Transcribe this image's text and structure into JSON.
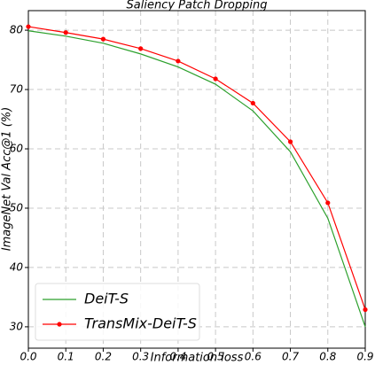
{
  "chart_data": {
    "type": "line",
    "title": "Saliency Patch Dropping",
    "x_label": "Information loss",
    "y_label": "ImageNet Val Acc@1 (%)",
    "x": [
      0,
      0.1,
      0.2,
      0.3,
      0.4,
      0.5,
      0.6,
      0.7,
      0.8,
      0.9
    ],
    "series": [
      {
        "name": "DeiT-S",
        "color": "#2ca02c",
        "marker": false,
        "values": [
          79.9,
          79.0,
          77.8,
          76.0,
          73.8,
          70.9,
          66.4,
          59.5,
          48.3,
          30.0
        ]
      },
      {
        "name": "TransMix-DeiT-S",
        "color": "#ff0000",
        "marker": true,
        "values": [
          80.6,
          79.6,
          78.5,
          76.9,
          74.8,
          71.8,
          67.7,
          61.2,
          50.9,
          32.9
        ]
      }
    ],
    "xlim": [
      0,
      0.9
    ],
    "ylim": [
      26.4,
      83.3
    ],
    "xticks": [
      {
        "value": 0,
        "label": "0.0"
      },
      0.1,
      0.2,
      0.3,
      0.4,
      0.5,
      0.6,
      0.7,
      0.8,
      0.9
    ],
    "yticks": [
      30,
      40,
      50,
      60,
      70,
      80
    ],
    "grid": true,
    "legend": "lower left"
  }
}
